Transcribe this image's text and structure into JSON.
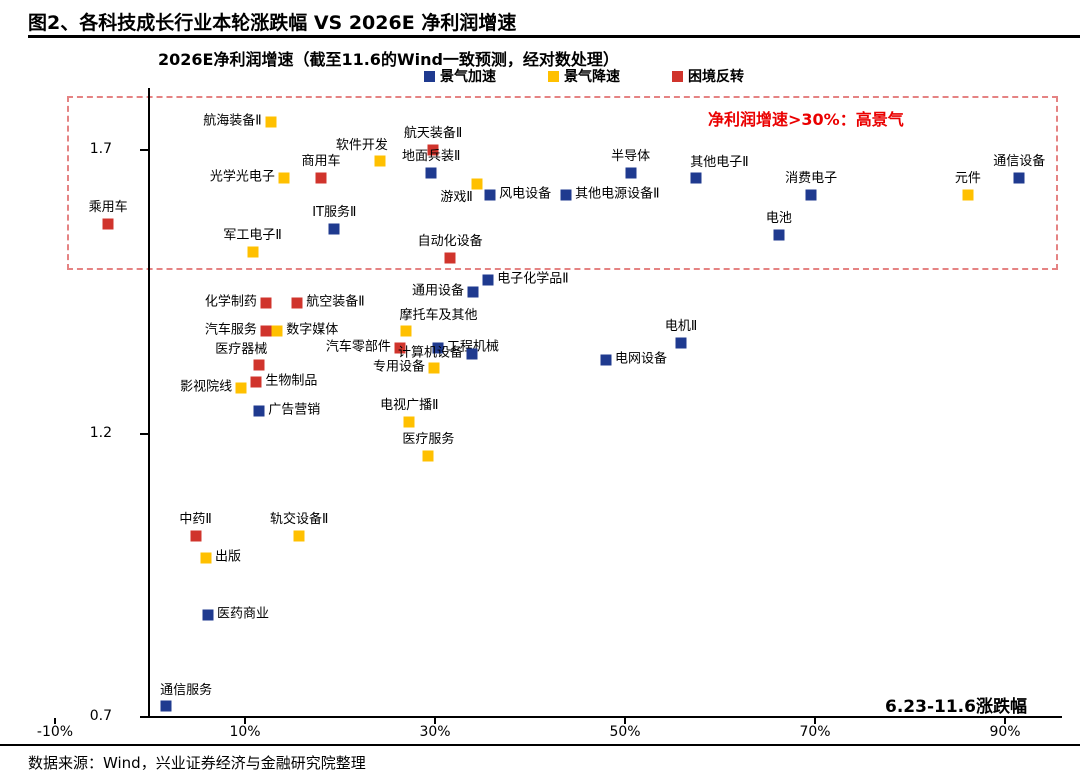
{
  "figure": {
    "title": "图2、各科技成长行业本轮涨跌幅 VS 2026E 净利润增速",
    "source_note": "数据来源：Wind，兴业证券经济与金融研究院整理"
  },
  "chart_data": {
    "type": "scatter",
    "title": "2026E净利润增速（截至11.6的Wind一致预测，经对数处理）",
    "xlabel_title": "6.23-11.6涨跌幅",
    "annotation": "净利润增速>30%：高景气",
    "annotation_color": "#ea0000",
    "box_border_color": "#e58383",
    "axis_color": "#000000",
    "xlim": [
      -10,
      96
    ],
    "ylim": [
      0.7,
      1.81
    ],
    "legend_position": "top",
    "x_ticks": [
      {
        "label": "-10%",
        "value": -10
      },
      {
        "label": "10%",
        "value": 10
      },
      {
        "label": "30%",
        "value": 30
      },
      {
        "label": "50%",
        "value": 50
      },
      {
        "label": "70%",
        "value": 70
      },
      {
        "label": "90%",
        "value": 90
      }
    ],
    "y_ticks": [
      {
        "label": "1.7",
        "value": 1.7
      },
      {
        "label": "1.2",
        "value": 1.2
      },
      {
        "label": "0.7",
        "value": 0.7
      }
    ],
    "legend": [
      {
        "label": "景气加速",
        "color": "#1f3a8f"
      },
      {
        "label": "景气降速",
        "color": "#ffc000"
      },
      {
        "label": "困境反转",
        "color": "#d0342c"
      }
    ],
    "points": [
      {
        "name": "航海装备Ⅱ",
        "x": 12.7,
        "y": 1.75,
        "group": "景气降速",
        "labelPos": "left"
      },
      {
        "name": "航天装备Ⅱ",
        "x": 29.8,
        "y": 1.7,
        "group": "困境反转",
        "labelPos": "above"
      },
      {
        "name": "软件开发",
        "x": 24.2,
        "y": 1.68,
        "group": "景气降速",
        "labelPos": "above-left"
      },
      {
        "name": "光学光电子",
        "x": 14.1,
        "y": 1.65,
        "group": "景气降速",
        "labelPos": "left"
      },
      {
        "name": "商用车",
        "x": 18.0,
        "y": 1.65,
        "group": "困境反转",
        "labelPos": "above"
      },
      {
        "name": "地面兵装Ⅱ",
        "x": 29.6,
        "y": 1.66,
        "group": "景气加速",
        "labelPos": "above"
      },
      {
        "name": "游戏Ⅱ",
        "x": 34.4,
        "y": 1.64,
        "group": "景气降速",
        "labelPos": "below-left"
      },
      {
        "name": "风电设备",
        "x": 35.8,
        "y": 1.62,
        "group": "景气加速",
        "labelPos": "right"
      },
      {
        "name": "其他电源设备Ⅱ",
        "x": 43.8,
        "y": 1.62,
        "group": "景气加速",
        "labelPos": "right"
      },
      {
        "name": "半导体",
        "x": 50.6,
        "y": 1.66,
        "group": "景气加速",
        "labelPos": "above"
      },
      {
        "name": "其他电子Ⅱ",
        "x": 57.5,
        "y": 1.65,
        "group": "景气加速",
        "labelPos": "above-right"
      },
      {
        "name": "消费电子",
        "x": 69.6,
        "y": 1.62,
        "group": "景气加速",
        "labelPos": "above"
      },
      {
        "name": "元件",
        "x": 86.1,
        "y": 1.62,
        "group": "景气降速",
        "labelPos": "above"
      },
      {
        "name": "通信设备",
        "x": 91.5,
        "y": 1.65,
        "group": "景气加速",
        "labelPos": "above"
      },
      {
        "name": "电池",
        "x": 66.2,
        "y": 1.55,
        "group": "景气加速",
        "labelPos": "above"
      },
      {
        "name": "乘用车",
        "x": -4.4,
        "y": 1.57,
        "group": "困境反转",
        "labelPos": "above"
      },
      {
        "name": "IT服务Ⅱ",
        "x": 19.4,
        "y": 1.56,
        "group": "景气加速",
        "labelPos": "above"
      },
      {
        "name": "军工电子Ⅱ",
        "x": 10.8,
        "y": 1.52,
        "group": "景气降速",
        "labelPos": "above"
      },
      {
        "name": "自动化设备",
        "x": 31.6,
        "y": 1.51,
        "group": "困境反转",
        "labelPos": "above"
      },
      {
        "name": "通用设备",
        "x": 34.0,
        "y": 1.45,
        "group": "景气加速",
        "labelPos": "left"
      },
      {
        "name": "电子化学品Ⅱ",
        "x": 35.6,
        "y": 1.47,
        "group": "景气加速",
        "labelPos": "right"
      },
      {
        "name": "化学制药",
        "x": 12.2,
        "y": 1.43,
        "group": "困境反转",
        "labelPos": "left"
      },
      {
        "name": "航空装备Ⅱ",
        "x": 15.5,
        "y": 1.43,
        "group": "困境反转",
        "labelPos": "right"
      },
      {
        "name": "汽车服务",
        "x": 12.2,
        "y": 1.38,
        "group": "困境反转",
        "labelPos": "left"
      },
      {
        "name": "数字媒体",
        "x": 13.4,
        "y": 1.38,
        "group": "景气降速",
        "labelPos": "right"
      },
      {
        "name": "摩托车及其他",
        "x": 26.9,
        "y": 1.38,
        "group": "景气降速",
        "labelPos": "above-right"
      },
      {
        "name": "汽车零部件",
        "x": 26.3,
        "y": 1.35,
        "group": "困境反转",
        "labelPos": "left"
      },
      {
        "name": "工程机械",
        "x": 30.3,
        "y": 1.35,
        "group": "景气加速",
        "labelPos": "right"
      },
      {
        "name": "计算机设备",
        "x": 33.9,
        "y": 1.34,
        "group": "景气加速",
        "labelPos": "left"
      },
      {
        "name": "专用设备",
        "x": 29.9,
        "y": 1.315,
        "group": "景气降速",
        "labelPos": "left"
      },
      {
        "name": "电机Ⅱ",
        "x": 55.9,
        "y": 1.36,
        "group": "景气加速",
        "labelPos": "above"
      },
      {
        "name": "电网设备",
        "x": 48.0,
        "y": 1.33,
        "group": "景气加速",
        "labelPos": "right"
      },
      {
        "name": "医疗器械",
        "x": 11.5,
        "y": 1.32,
        "group": "困境反转",
        "labelPos": "above-left"
      },
      {
        "name": "生物制品",
        "x": 11.2,
        "y": 1.29,
        "group": "困境反转",
        "labelPos": "right"
      },
      {
        "name": "影视院线",
        "x": 9.6,
        "y": 1.28,
        "group": "景气降速",
        "labelPos": "left"
      },
      {
        "name": "广告营销",
        "x": 11.5,
        "y": 1.24,
        "group": "景气加速",
        "labelPos": "right"
      },
      {
        "name": "电视广播Ⅱ",
        "x": 27.3,
        "y": 1.22,
        "group": "景气降速",
        "labelPos": "above"
      },
      {
        "name": "医疗服务",
        "x": 29.3,
        "y": 1.16,
        "group": "景气降速",
        "labelPos": "above"
      },
      {
        "name": "中药Ⅱ",
        "x": 4.8,
        "y": 1.02,
        "group": "困境反转",
        "labelPos": "above"
      },
      {
        "name": "轨交设备Ⅱ",
        "x": 15.7,
        "y": 1.02,
        "group": "景气降速",
        "labelPos": "above"
      },
      {
        "name": "出版",
        "x": 5.9,
        "y": 0.98,
        "group": "景气降速",
        "labelPos": "right"
      },
      {
        "name": "医药商业",
        "x": 6.1,
        "y": 0.88,
        "group": "景气加速",
        "labelPos": "right"
      },
      {
        "name": "通信服务",
        "x": 1.7,
        "y": 0.72,
        "group": "景气加速",
        "labelPos": "above-right"
      }
    ]
  }
}
